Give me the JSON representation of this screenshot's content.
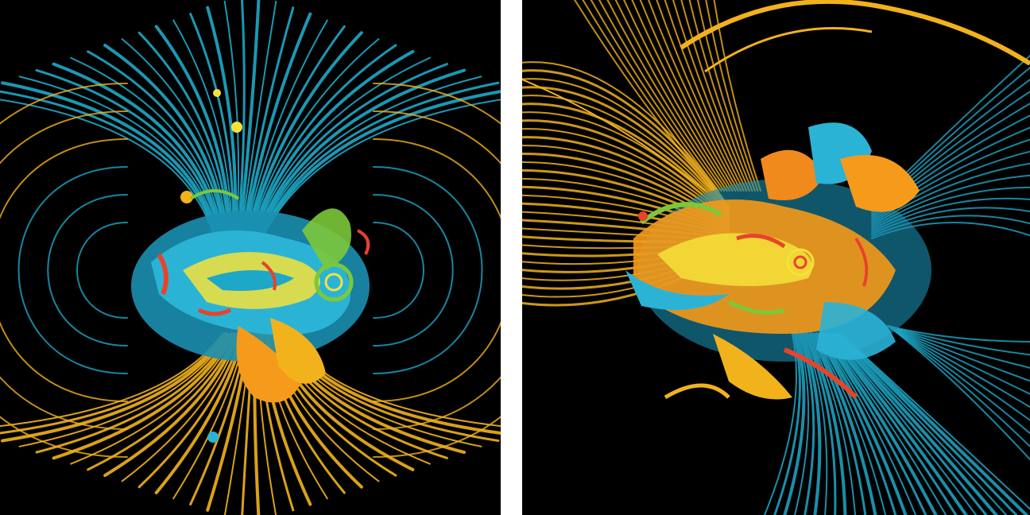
{
  "image": {
    "kind": "abstract-digital-art-diptych",
    "panels": [
      {
        "name": "left-artwork",
        "background": "#000000",
        "palette": [
          "#1ea8c8",
          "#2bb3d6",
          "#f2b21c",
          "#f59a1a",
          "#e8432a",
          "#7cc83a",
          "#f4e23a"
        ],
        "upper_lines_color": "#1ea8c8",
        "lower_lines_color": "#f2b21c"
      },
      {
        "name": "right-artwork",
        "background": "#000000",
        "palette": [
          "#f2b21c",
          "#f08a1c",
          "#1ea8c8",
          "#e8432a",
          "#7cc83a",
          "#f4e23a"
        ],
        "upper_lines_color": "#f2b21c",
        "lower_lines_color": "#1ea8c8"
      }
    ],
    "divider_color": "#ffffff"
  }
}
